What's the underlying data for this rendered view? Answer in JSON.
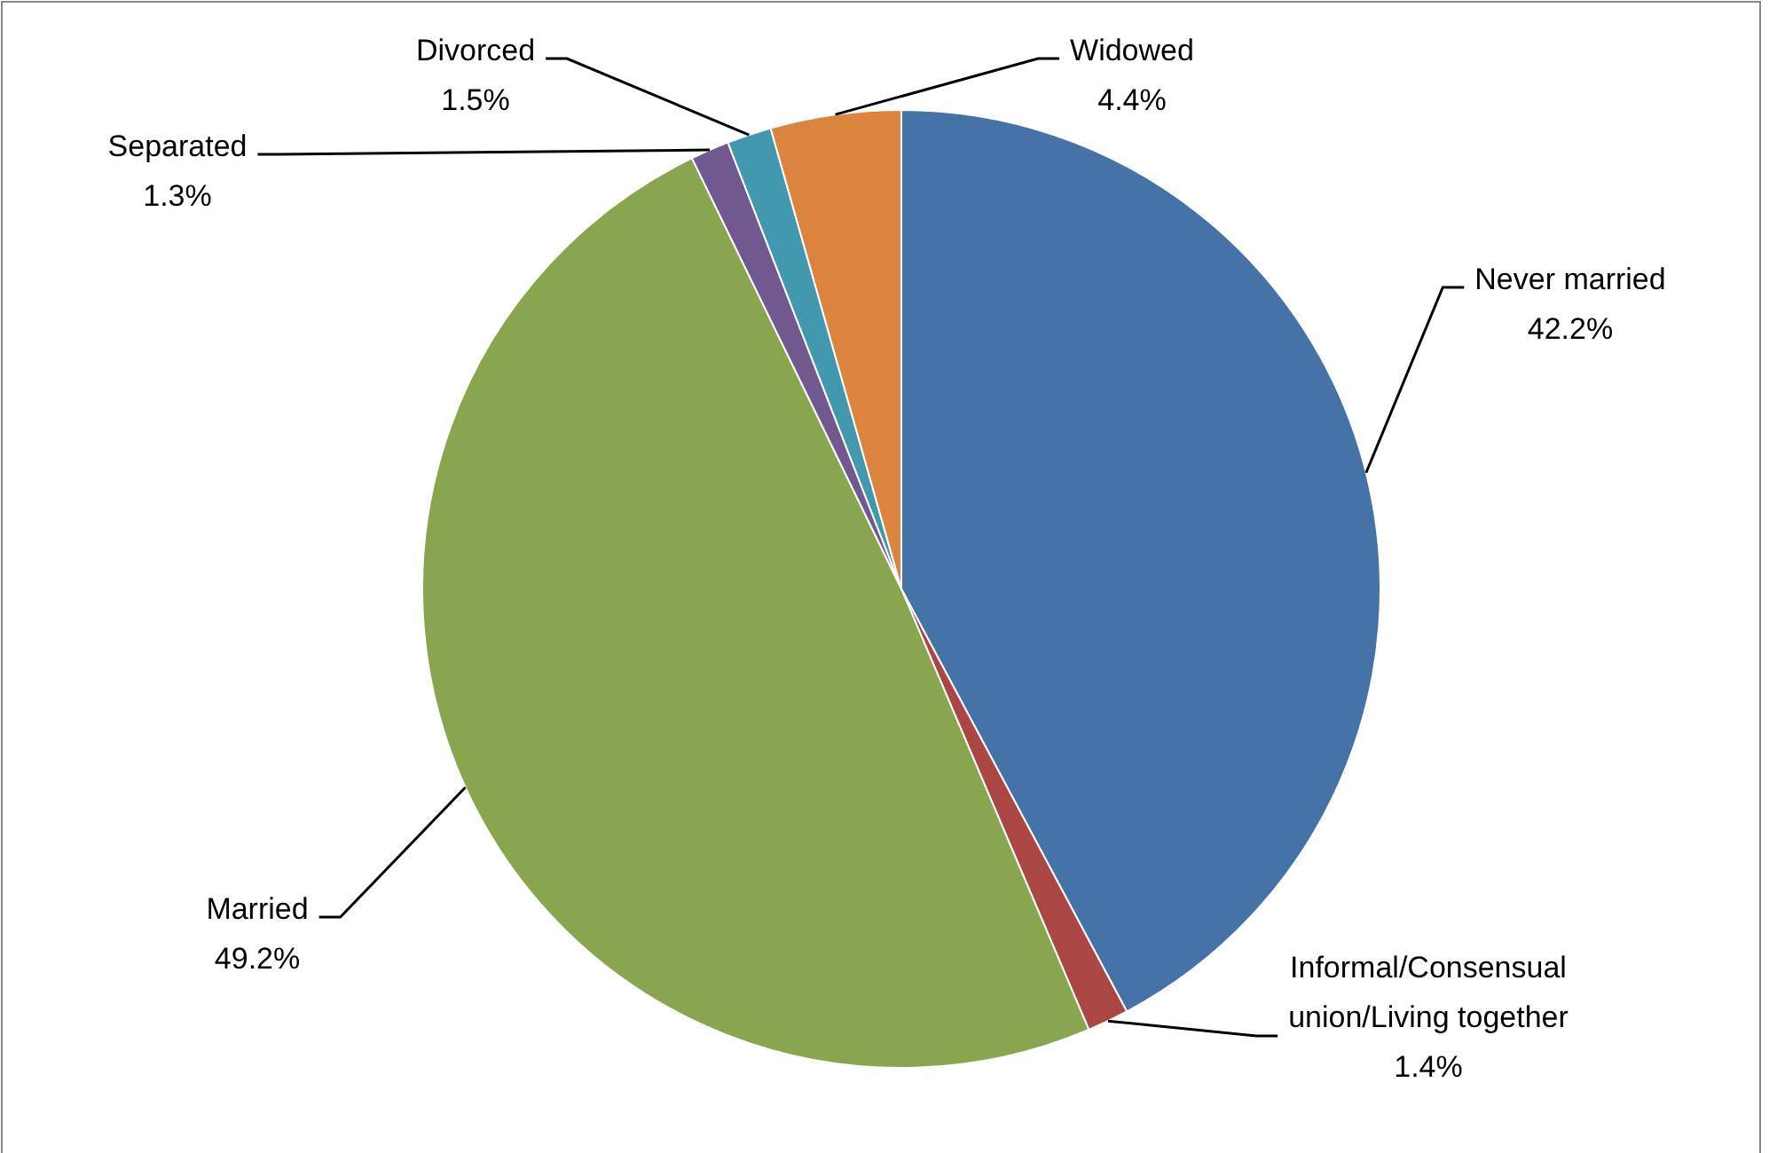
{
  "chart_data": {
    "type": "pie",
    "categories": [
      "Never married",
      "Informal/Consensual union/Living together",
      "Married",
      "Separated",
      "Divorced",
      "Widowed"
    ],
    "values": [
      42.2,
      1.4,
      49.2,
      1.3,
      1.5,
      4.4
    ],
    "value_labels": [
      "42.2%",
      "1.4%",
      "49.2%",
      "1.3%",
      "1.5%",
      "4.4%"
    ],
    "colors": [
      "#4572a7",
      "#aa4643",
      "#89a54e",
      "#71588f",
      "#4198af",
      "#db843d"
    ],
    "legend": false
  }
}
